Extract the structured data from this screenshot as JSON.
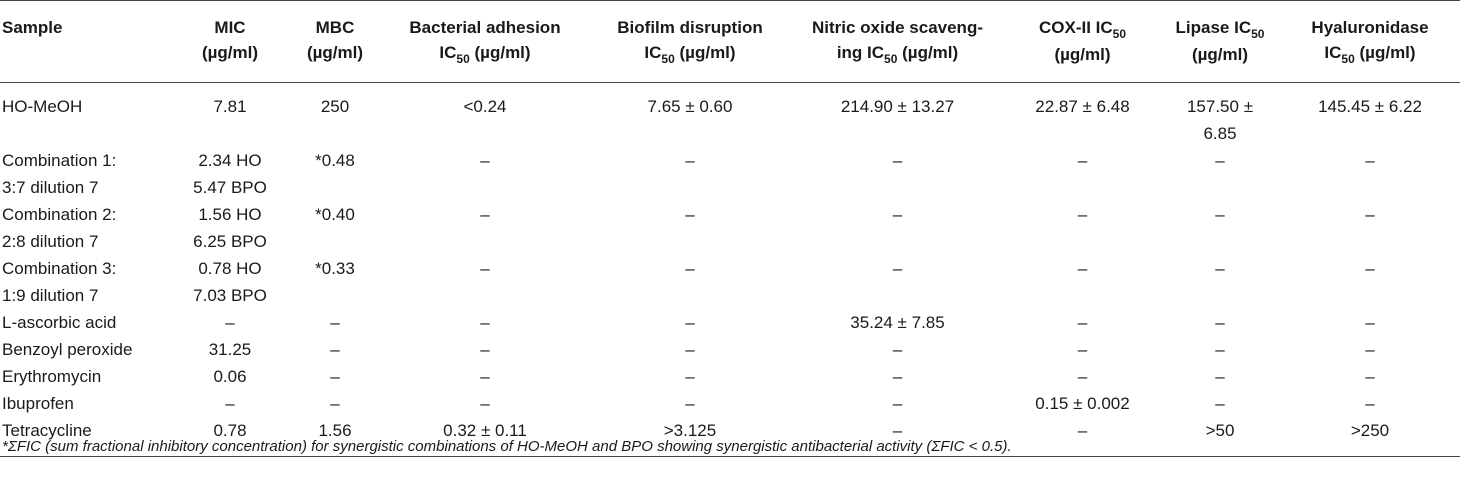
{
  "columns": [
    {
      "line1": "Sample",
      "line2": "",
      "sub": "",
      "line2b": ""
    },
    {
      "line1": "MIC",
      "line2": "(µg/ml)",
      "sub": "",
      "line2b": ""
    },
    {
      "line1": "MBC",
      "line2": "(µg/ml)",
      "sub": "",
      "line2b": ""
    },
    {
      "line1": "Bacterial adhesion",
      "line2": "IC",
      "sub": "50",
      "line2b": " (µg/ml)"
    },
    {
      "line1": "Biofilm disruption",
      "line2": "IC",
      "sub": "50",
      "line2b": " (µg/ml)"
    },
    {
      "line1": "Nitric oxide scaveng-",
      "line2": "ing IC",
      "sub": "50",
      "line2b": " (µg/ml)"
    },
    {
      "line1": "COX-II IC",
      "sub1": "50",
      "line2": "(µg/ml)",
      "sub": "",
      "line2b": ""
    },
    {
      "line1": "Lipase IC",
      "sub1": "50",
      "line2": "(µg/ml)",
      "sub": "",
      "line2b": ""
    },
    {
      "line1": "Hyaluronidase",
      "line2": "IC",
      "sub": "50",
      "line2b": " (µg/ml)"
    }
  ],
  "rows": [
    {
      "sample": [
        "HO-MeOH"
      ],
      "mic": [
        "7.81"
      ],
      "mbc": "250",
      "adhesion": "<0.24",
      "biofilm": "7.65 ± 0.60",
      "nitric": "214.90 ± 13.27",
      "cox": "22.87 ± 6.48",
      "lipase": [
        "157.50 ±",
        "6.85"
      ],
      "hyal": "145.45 ± 6.22"
    },
    {
      "sample": [
        "Combination 1:",
        "3:7 dilution 7"
      ],
      "mic": [
        "2.34 HO",
        "5.47 BPO"
      ],
      "mbc": "*0.48",
      "adhesion": "–",
      "biofilm": "–",
      "nitric": "–",
      "cox": "–",
      "lipase": [
        "–"
      ],
      "hyal": "–"
    },
    {
      "sample": [
        "Combination 2:",
        "2:8 dilution 7"
      ],
      "mic": [
        "1.56 HO",
        "6.25 BPO"
      ],
      "mbc": "*0.40",
      "adhesion": "–",
      "biofilm": "–",
      "nitric": "–",
      "cox": "–",
      "lipase": [
        "–"
      ],
      "hyal": "–"
    },
    {
      "sample": [
        "Combination 3:",
        "1:9 dilution 7"
      ],
      "mic": [
        "0.78 HO",
        "7.03 BPO"
      ],
      "mbc": "*0.33",
      "adhesion": "–",
      "biofilm": "–",
      "nitric": "–",
      "cox": "–",
      "lipase": [
        "–"
      ],
      "hyal": "–"
    },
    {
      "sample": [
        "L-ascorbic acid"
      ],
      "mic": [
        "–"
      ],
      "mbc": "–",
      "adhesion": "–",
      "biofilm": "–",
      "nitric": "35.24 ± 7.85",
      "cox": "–",
      "lipase": [
        "–"
      ],
      "hyal": "–"
    },
    {
      "sample": [
        "Benzoyl peroxide"
      ],
      "mic": [
        "31.25"
      ],
      "mbc": "–",
      "adhesion": "–",
      "biofilm": "–",
      "nitric": "–",
      "cox": "–",
      "lipase": [
        "–"
      ],
      "hyal": "–"
    },
    {
      "sample": [
        "Erythromycin"
      ],
      "mic": [
        "0.06"
      ],
      "mbc": "–",
      "adhesion": "–",
      "biofilm": "–",
      "nitric": "–",
      "cox": "–",
      "lipase": [
        "–"
      ],
      "hyal": "–"
    },
    {
      "sample": [
        "Ibuprofen"
      ],
      "mic": [
        "–"
      ],
      "mbc": "–",
      "adhesion": "–",
      "biofilm": "–",
      "nitric": "–",
      "cox": "0.15 ± 0.002",
      "lipase": [
        "–"
      ],
      "hyal": "–"
    },
    {
      "sample": [
        "Tetracycline"
      ],
      "mic": [
        "0.78"
      ],
      "mbc": "1.56",
      "adhesion": "0.32 ± 0.11",
      "biofilm": ">3.125",
      "nitric": "–",
      "cox": "–",
      "lipase": [
        ">50"
      ],
      "hyal": ">250"
    }
  ],
  "footnote": "*ΣFIC (sum fractional inhibitory concentration) for synergistic combinations of HO-MeOH and BPO showing synergistic antibacterial activity (ΣFIC < 0.5)."
}
